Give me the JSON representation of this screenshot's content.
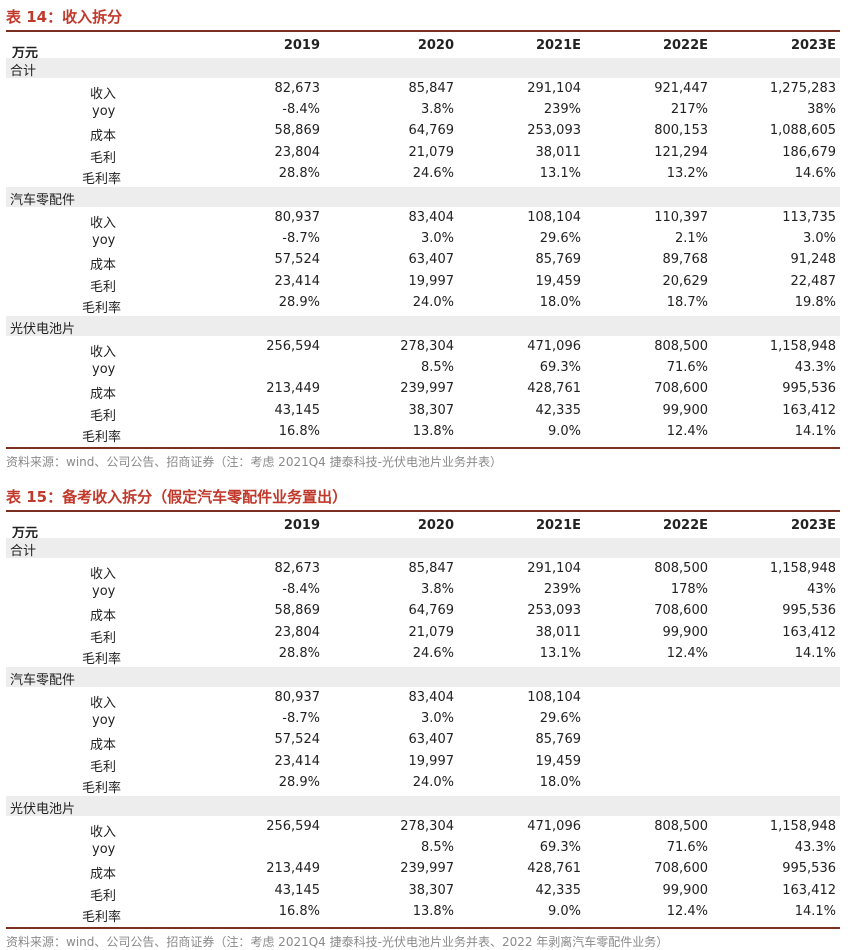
{
  "tables": [
    {
      "title": "表 14：收入拆分",
      "unit": "万元",
      "columns": [
        "2019",
        "2020",
        "2021E",
        "2022E",
        "2023E"
      ],
      "sections": [
        {
          "name": "合计",
          "rows": [
            {
              "label": "收入",
              "values": [
                "82,673",
                "85,847",
                "291,104",
                "921,447",
                "1,275,283"
              ]
            },
            {
              "label": "yoy",
              "values": [
                "-8.4%",
                "3.8%",
                "239%",
                "217%",
                "38%"
              ]
            },
            {
              "label": "成本",
              "values": [
                "58,869",
                "64,769",
                "253,093",
                "800,153",
                "1,088,605"
              ]
            },
            {
              "label": "毛利",
              "values": [
                "23,804",
                "21,079",
                "38,011",
                "121,294",
                "186,679"
              ]
            },
            {
              "label": "毛利率",
              "values": [
                "28.8%",
                "24.6%",
                "13.1%",
                "13.2%",
                "14.6%"
              ]
            }
          ]
        },
        {
          "name": "汽车零配件",
          "rows": [
            {
              "label": "收入",
              "values": [
                "80,937",
                "83,404",
                "108,104",
                "110,397",
                "113,735"
              ]
            },
            {
              "label": "yoy",
              "values": [
                "-8.7%",
                "3.0%",
                "29.6%",
                "2.1%",
                "3.0%"
              ]
            },
            {
              "label": "成本",
              "values": [
                "57,524",
                "63,407",
                "85,769",
                "89,768",
                "91,248"
              ]
            },
            {
              "label": "毛利",
              "values": [
                "23,414",
                "19,997",
                "19,459",
                "20,629",
                "22,487"
              ]
            },
            {
              "label": "毛利率",
              "values": [
                "28.9%",
                "24.0%",
                "18.0%",
                "18.7%",
                "19.8%"
              ]
            }
          ]
        },
        {
          "name": "光伏电池片",
          "rows": [
            {
              "label": "收入",
              "values": [
                "256,594",
                "278,304",
                "471,096",
                "808,500",
                "1,158,948"
              ]
            },
            {
              "label": "yoy",
              "values": [
                "",
                "8.5%",
                "69.3%",
                "71.6%",
                "43.3%"
              ]
            },
            {
              "label": "成本",
              "values": [
                "213,449",
                "239,997",
                "428,761",
                "708,600",
                "995,536"
              ]
            },
            {
              "label": "毛利",
              "values": [
                "43,145",
                "38,307",
                "42,335",
                "99,900",
                "163,412"
              ]
            },
            {
              "label": "毛利率",
              "values": [
                "16.8%",
                "13.8%",
                "9.0%",
                "12.4%",
                "14.1%"
              ]
            }
          ]
        }
      ],
      "source": "资料来源：wind、公司公告、招商证券（注：考虑 2021Q4 捷泰科技-光伏电池片业务并表）"
    },
    {
      "title": "表 15：备考收入拆分（假定汽车零配件业务置出）",
      "unit": "万元",
      "columns": [
        "2019",
        "2020",
        "2021E",
        "2022E",
        "2023E"
      ],
      "sections": [
        {
          "name": "合计",
          "rows": [
            {
              "label": "收入",
              "values": [
                "82,673",
                "85,847",
                "291,104",
                "808,500",
                "1,158,948"
              ]
            },
            {
              "label": "yoy",
              "values": [
                "-8.4%",
                "3.8%",
                "239%",
                "178%",
                "43%"
              ]
            },
            {
              "label": "成本",
              "values": [
                "58,869",
                "64,769",
                "253,093",
                "708,600",
                "995,536"
              ]
            },
            {
              "label": "毛利",
              "values": [
                "23,804",
                "21,079",
                "38,011",
                "99,900",
                "163,412"
              ]
            },
            {
              "label": "毛利率",
              "values": [
                "28.8%",
                "24.6%",
                "13.1%",
                "12.4%",
                "14.1%"
              ]
            }
          ]
        },
        {
          "name": "汽车零配件",
          "rows": [
            {
              "label": "收入",
              "values": [
                "80,937",
                "83,404",
                "108,104",
                "",
                ""
              ]
            },
            {
              "label": "yoy",
              "values": [
                "-8.7%",
                "3.0%",
                "29.6%",
                "",
                ""
              ]
            },
            {
              "label": "成本",
              "values": [
                "57,524",
                "63,407",
                "85,769",
                "",
                ""
              ]
            },
            {
              "label": "毛利",
              "values": [
                "23,414",
                "19,997",
                "19,459",
                "",
                ""
              ]
            },
            {
              "label": "毛利率",
              "values": [
                "28.9%",
                "24.0%",
                "18.0%",
                "",
                ""
              ]
            }
          ]
        },
        {
          "name": "光伏电池片",
          "rows": [
            {
              "label": "收入",
              "values": [
                "256,594",
                "278,304",
                "471,096",
                "808,500",
                "1,158,948"
              ]
            },
            {
              "label": "yoy",
              "values": [
                "",
                "8.5%",
                "69.3%",
                "71.6%",
                "43.3%"
              ]
            },
            {
              "label": "成本",
              "values": [
                "213,449",
                "239,997",
                "428,761",
                "708,600",
                "995,536"
              ]
            },
            {
              "label": "毛利",
              "values": [
                "43,145",
                "38,307",
                "42,335",
                "99,900",
                "163,412"
              ]
            },
            {
              "label": "毛利率",
              "values": [
                "16.8%",
                "13.8%",
                "9.0%",
                "12.4%",
                "14.1%"
              ]
            }
          ]
        }
      ],
      "source": "资料来源：wind、公司公告、招商证券（注：考虑 2021Q4 捷泰科技-光伏电池片业务并表、2022 年剥离汽车零配件业务）"
    }
  ]
}
